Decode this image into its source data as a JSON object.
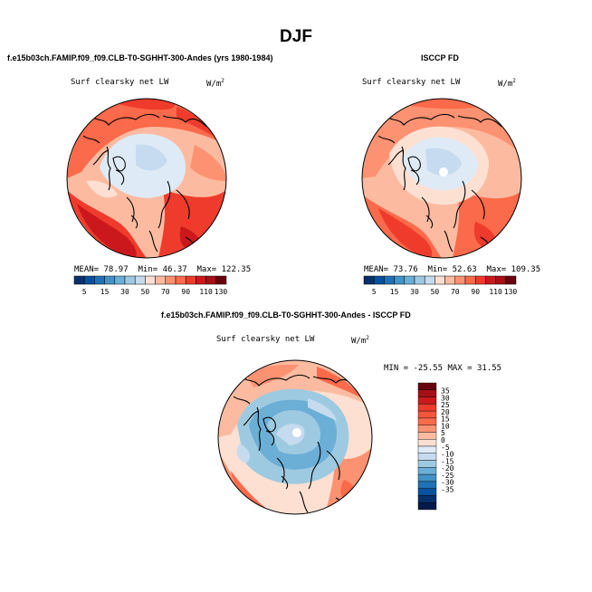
{
  "page": {
    "title": "DJF",
    "diff_title": "f.e15b03ch.FAMIP.f09_f09.CLB-T0-SGHHT-300-Andes - ISCCP FD",
    "diff_stats": "MIN = -25.55 MAX =  31.55"
  },
  "colors": {
    "ocean_warm": [
      "#fee0d2",
      "#fcbba1",
      "#fc9272",
      "#fb6a4a",
      "#ef3b2c",
      "#cb181d"
    ],
    "cool": [
      "#deebf7",
      "#c6dbef",
      "#9ecae1"
    ],
    "abs_colorbar": [
      "#08306b",
      "#08519c",
      "#2171b5",
      "#4292c6",
      "#6baed6",
      "#9ecae1",
      "#c6dbef",
      "#fee0d2",
      "#fcbba1",
      "#fc9272",
      "#fb6a4a",
      "#ef3b2c",
      "#cb181d",
      "#a50f15",
      "#67000d"
    ],
    "diff_colorbar": [
      "#67000d",
      "#a50f15",
      "#cb181d",
      "#ef3b2c",
      "#f6553c",
      "#fb6a4a",
      "#fc9272",
      "#fcbba1",
      "#fee0d2",
      "#deebf7",
      "#c6dbef",
      "#9ecae1",
      "#6baed6",
      "#4292c6",
      "#2171b5",
      "#08519c",
      "#08306b",
      "#041a4a"
    ]
  },
  "chart_data": [
    {
      "type": "heatmap",
      "projection": "north polar stereographic",
      "case_title": "f.e15b03ch.FAMIP.f09_f09.CLB-T0-SGHHT-300-Andes (yrs 1980-1984)",
      "variable": "Surf clearsky net LW",
      "units_base": "W/m",
      "units_exp": "2",
      "stats": {
        "mean_label": "MEAN=",
        "mean": "78.97",
        "min_label": "Min=",
        "min": "46.37",
        "max_label": "Max=",
        "max": "122.35"
      },
      "colorbar_ticks": [
        "5",
        "15",
        "30",
        "50",
        "70",
        "90",
        "110",
        "130"
      ]
    },
    {
      "type": "heatmap",
      "projection": "north polar stereographic",
      "case_title": "ISCCP FD",
      "variable": "Surf clearsky net LW",
      "units_base": "W/m",
      "units_exp": "2",
      "stats": {
        "mean_label": "MEAN=",
        "mean": "73.76",
        "min_label": "Min=",
        "min": "52.63",
        "max_label": "Max=",
        "max": "109.35"
      },
      "colorbar_ticks": [
        "5",
        "15",
        "30",
        "50",
        "70",
        "90",
        "110",
        "130"
      ]
    },
    {
      "type": "heatmap",
      "projection": "north polar stereographic",
      "case_title": "f.e15b03ch.FAMIP.f09_f09.CLB-T0-SGHHT-300-Andes - ISCCP FD",
      "variable": "Surf clearsky net LW",
      "units_base": "W/m",
      "units_exp": "2",
      "stats": {
        "min": "-25.55",
        "max": "31.55"
      },
      "colorbar_ticks": [
        "35",
        "30",
        "25",
        "20",
        "15",
        "10",
        "5",
        "0",
        "-5",
        "-10",
        "-15",
        "-20",
        "-25",
        "-30",
        "-35"
      ]
    }
  ]
}
